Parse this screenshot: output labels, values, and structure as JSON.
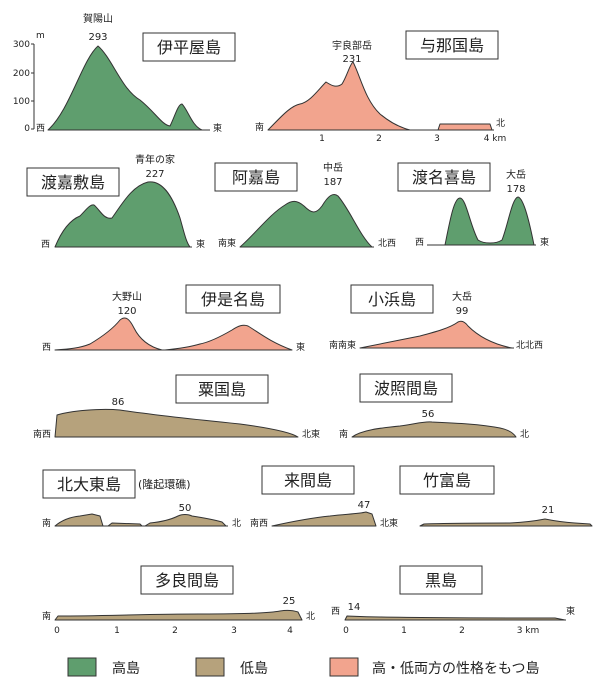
{
  "colors": {
    "high": "#5f9e6e",
    "low": "#b6a27c",
    "mixed": "#f2a48e",
    "outline": "#333333"
  },
  "scale": {
    "y_unit": "m",
    "y_ticks": [
      "0",
      "100",
      "200",
      "300"
    ],
    "x_ticks": [
      "0",
      "1",
      "2",
      "3",
      "4 km"
    ],
    "x_ticks_kuro": [
      "0",
      "1",
      "2",
      "3 km"
    ]
  },
  "islands": [
    {
      "id": "iheya",
      "name": "伊平屋島",
      "type": "high",
      "dir_left": "西",
      "dir_right": "東",
      "peak_name": "賀陽山",
      "peak_elev": "293"
    },
    {
      "id": "yonaguni",
      "name": "与那国島",
      "type": "mixed",
      "dir_left": "南",
      "dir_right": "北",
      "peak_name": "宇良部岳",
      "peak_elev": "231"
    },
    {
      "id": "tokashiki",
      "name": "渡嘉敷島",
      "type": "high",
      "dir_left": "西",
      "dir_right": "東",
      "peak_name": "青年の家",
      "peak_elev": "227"
    },
    {
      "id": "aka",
      "name": "阿嘉島",
      "type": "high",
      "dir_left": "南東",
      "dir_right": "北西",
      "peak_name": "中岳",
      "peak_elev": "187"
    },
    {
      "id": "tonaki",
      "name": "渡名喜島",
      "type": "high",
      "dir_left": "西",
      "dir_right": "東",
      "peak_name": "大岳",
      "peak_elev": "178"
    },
    {
      "id": "izena",
      "name": "伊是名島",
      "type": "mixed",
      "dir_left": "西",
      "dir_right": "東",
      "peak_name": "大野山",
      "peak_elev": "120"
    },
    {
      "id": "kohama",
      "name": "小浜島",
      "type": "mixed",
      "dir_left": "南南東",
      "dir_right": "北北西",
      "peak_name": "大岳",
      "peak_elev": "99"
    },
    {
      "id": "aguni",
      "name": "粟国島",
      "type": "low",
      "dir_left": "南西",
      "dir_right": "北東",
      "peak_name": "",
      "peak_elev": "86"
    },
    {
      "id": "hateruma",
      "name": "波照間島",
      "type": "low",
      "dir_left": "南",
      "dir_right": "北",
      "peak_name": "",
      "peak_elev": "56"
    },
    {
      "id": "kitadaito",
      "name": "北大東島",
      "name_note": "(隆起環礁)",
      "type": "low",
      "dir_left": "南",
      "dir_right": "北",
      "peak_name": "",
      "peak_elev": "50"
    },
    {
      "id": "kurima",
      "name": "来間島",
      "type": "low",
      "dir_left": "南西",
      "dir_right": "北東",
      "peak_name": "",
      "peak_elev": "47"
    },
    {
      "id": "taketomi",
      "name": "竹富島",
      "type": "low",
      "dir_left": "",
      "dir_right": "",
      "peak_name": "",
      "peak_elev": "21"
    },
    {
      "id": "tarama",
      "name": "多良間島",
      "type": "low",
      "dir_left": "南",
      "dir_right": "北",
      "peak_name": "",
      "peak_elev": "25"
    },
    {
      "id": "kuroshima",
      "name": "黒島",
      "type": "low",
      "dir_left": "西",
      "dir_right": "東",
      "peak_name": "",
      "peak_elev": "14"
    }
  ],
  "legend": [
    {
      "type": "high",
      "label": "高島"
    },
    {
      "type": "low",
      "label": "低島"
    },
    {
      "type": "mixed",
      "label": "高・低両方の性格をもつ島"
    }
  ]
}
